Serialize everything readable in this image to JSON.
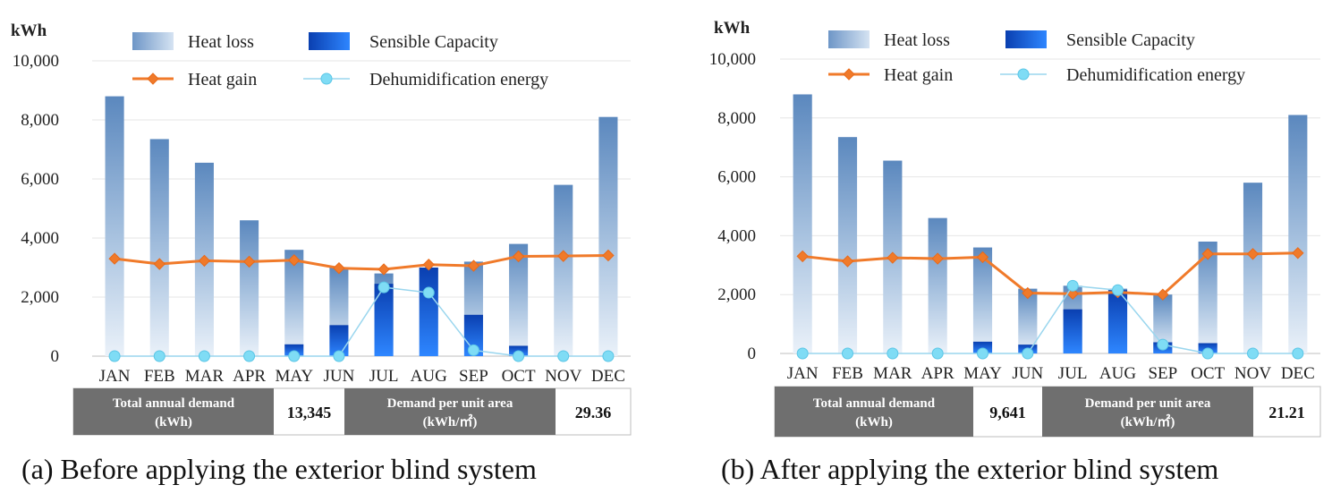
{
  "chart_data": [
    {
      "type": "bar",
      "ylabel": "kWh",
      "ylim": [
        0,
        10000
      ],
      "yticks": [
        "0",
        "2,000",
        "4,000",
        "6,000",
        "8,000",
        "10,000"
      ],
      "categories": [
        "JAN",
        "FEB",
        "MAR",
        "APR",
        "MAY",
        "JUN",
        "JUL",
        "AUG",
        "SEP",
        "OCT",
        "NOV",
        "DEC"
      ],
      "legend": [
        "Heat loss",
        "Sensible Capacity",
        "Heat gain",
        "Dehumidification energy"
      ],
      "series": [
        {
          "name": "Heat loss",
          "kind": "bar",
          "values": [
            8800,
            7350,
            6550,
            4600,
            3600,
            3000,
            2800,
            3000,
            3200,
            3800,
            5800,
            8100
          ]
        },
        {
          "name": "Sensible Capacity",
          "kind": "bar",
          "values": [
            0,
            0,
            0,
            0,
            400,
            1050,
            2450,
            3000,
            1400,
            350,
            0,
            0
          ]
        },
        {
          "name": "Heat gain",
          "kind": "line",
          "values": [
            3300,
            3120,
            3230,
            3200,
            3250,
            2980,
            2940,
            3100,
            3060,
            3380,
            3390,
            3410
          ]
        },
        {
          "name": "Dehumidification energy",
          "kind": "line",
          "values": [
            0,
            0,
            0,
            0,
            0,
            0,
            2330,
            2150,
            200,
            0,
            0,
            0
          ]
        }
      ],
      "table": {
        "label1": "Total annual demand",
        "unit1": "(kWh)",
        "value1": "13,345",
        "label2": "Demand per unit area",
        "unit2": "(kWh/㎡)",
        "value2": "29.36"
      },
      "caption": "(a) Before applying the exterior blind system"
    },
    {
      "type": "bar",
      "ylabel": "kWh",
      "ylim": [
        0,
        10000
      ],
      "yticks": [
        "0",
        "2,000",
        "4,000",
        "6,000",
        "8,000",
        "10,000"
      ],
      "categories": [
        "JAN",
        "FEB",
        "MAR",
        "APR",
        "MAY",
        "JUN",
        "JUL",
        "AUG",
        "SEP",
        "OCT",
        "NOV",
        "DEC"
      ],
      "legend": [
        "Heat loss",
        "Sensible Capacity",
        "Heat gain",
        "Dehumidification energy"
      ],
      "series": [
        {
          "name": "Heat loss",
          "kind": "bar",
          "values": [
            8800,
            7350,
            6550,
            4600,
            3600,
            2200,
            2300,
            2200,
            2000,
            3800,
            5800,
            8100
          ]
        },
        {
          "name": "Sensible Capacity",
          "kind": "bar",
          "values": [
            0,
            0,
            0,
            0,
            400,
            300,
            1500,
            2150,
            380,
            350,
            0,
            0
          ]
        },
        {
          "name": "Heat gain",
          "kind": "line",
          "values": [
            3300,
            3130,
            3250,
            3220,
            3270,
            2050,
            2030,
            2080,
            2000,
            3380,
            3380,
            3410
          ]
        },
        {
          "name": "Dehumidification energy",
          "kind": "line",
          "values": [
            0,
            0,
            0,
            0,
            0,
            0,
            2300,
            2150,
            300,
            0,
            0,
            0
          ]
        }
      ],
      "table": {
        "label1": "Total annual demand",
        "unit1": "(kWh)",
        "value1": "9,641",
        "label2": "Demand per unit area",
        "unit2": "(kWh/㎡)",
        "value2": "21.21"
      },
      "caption": "(b) After applying the exterior blind system"
    }
  ]
}
